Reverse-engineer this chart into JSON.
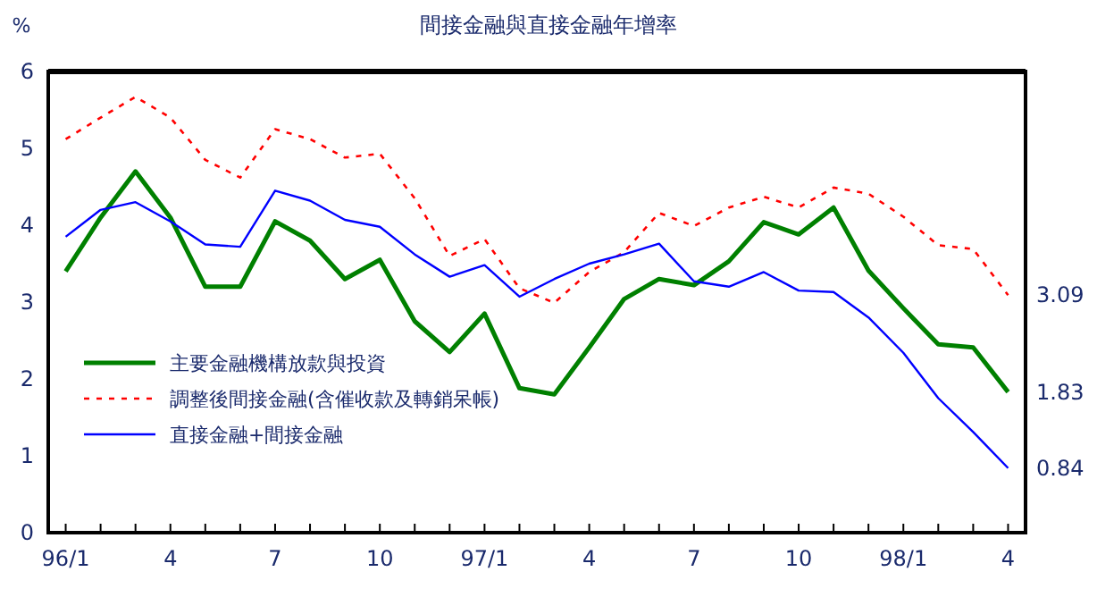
{
  "chart_data": {
    "type": "line",
    "title": "間接金融與直接金融年增率",
    "ylabel": "%",
    "categories": [
      "96/1",
      null,
      null,
      "4",
      null,
      null,
      "7",
      null,
      null,
      "10",
      null,
      null,
      "97/1",
      null,
      null,
      "4",
      null,
      null,
      "7",
      null,
      null,
      "10",
      null,
      null,
      "98/1",
      null,
      null,
      "4"
    ],
    "ylim": [
      0,
      6
    ],
    "yticks": [
      0,
      1,
      2,
      3,
      4,
      5,
      6
    ],
    "grid": false,
    "legend": "bottom left",
    "tick_labels": true,
    "series": [
      {
        "name": "主要金融機構放款與投資",
        "color": "#008000",
        "line_style": "solid",
        "values": [
          3.4,
          4.1,
          4.7,
          4.1,
          3.2,
          3.2,
          4.05,
          3.8,
          3.3,
          3.55,
          2.75,
          2.35,
          2.85,
          1.88,
          1.8,
          2.41,
          3.04,
          3.3,
          3.22,
          3.53,
          4.04,
          3.88,
          4.23,
          3.41,
          2.92,
          2.45,
          2.41,
          1.83
        ],
        "value_labels": [
          null,
          null,
          null,
          null,
          null,
          null,
          null,
          null,
          null,
          null,
          null,
          null,
          null,
          null,
          null,
          null,
          null,
          null,
          null,
          null,
          null,
          null,
          null,
          null,
          null,
          null,
          null,
          "1.83"
        ]
      },
      {
        "name": "調整後間接金融(含催收款及轉銷呆帳)",
        "color": "#ff0000",
        "line_style": "dotted",
        "values": [
          5.12,
          5.4,
          5.67,
          5.4,
          4.85,
          4.62,
          5.25,
          5.12,
          4.88,
          4.93,
          4.35,
          3.6,
          3.82,
          3.18,
          2.99,
          3.39,
          3.65,
          4.16,
          3.99,
          4.23,
          4.37,
          4.23,
          4.49,
          4.41,
          4.11,
          3.74,
          3.69,
          3.09
        ],
        "value_labels": [
          null,
          null,
          null,
          null,
          null,
          null,
          null,
          null,
          null,
          null,
          null,
          null,
          null,
          null,
          null,
          null,
          null,
          null,
          null,
          null,
          null,
          null,
          null,
          null,
          null,
          null,
          null,
          "3.09"
        ]
      },
      {
        "name": "直接金融+間接金融",
        "color": "#0000ff",
        "line_style": "solid",
        "values": [
          3.85,
          4.2,
          4.3,
          4.05,
          3.75,
          3.72,
          4.45,
          4.32,
          4.07,
          3.98,
          3.62,
          3.33,
          3.48,
          3.07,
          3.3,
          3.5,
          3.62,
          3.76,
          3.27,
          3.2,
          3.39,
          3.15,
          3.13,
          2.8,
          2.34,
          1.75,
          1.31,
          0.84
        ],
        "value_labels": [
          null,
          null,
          null,
          null,
          null,
          null,
          null,
          null,
          null,
          null,
          null,
          null,
          null,
          null,
          null,
          null,
          null,
          null,
          null,
          null,
          null,
          null,
          null,
          null,
          null,
          null,
          null,
          "0.84"
        ]
      }
    ]
  }
}
